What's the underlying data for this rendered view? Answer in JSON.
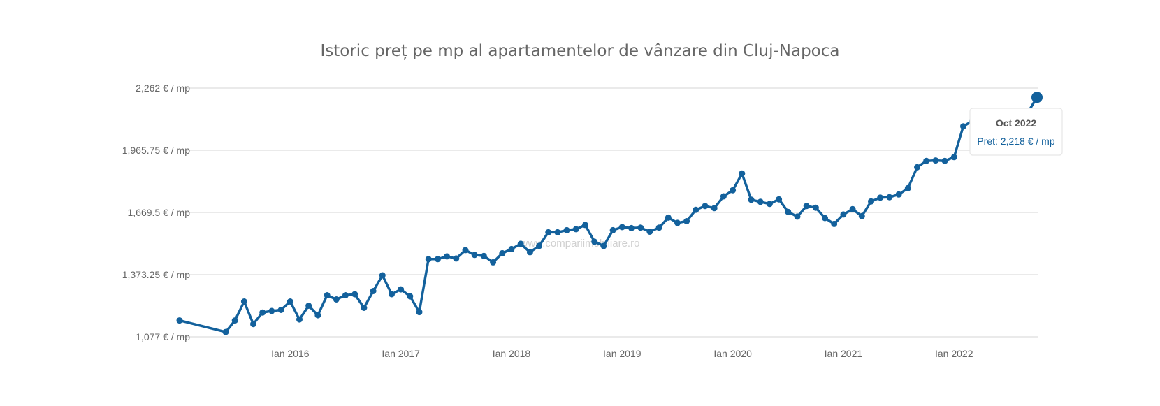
{
  "chart_data": {
    "type": "line",
    "title": "Istoric preț pe mp al apartamentelor de vânzare din Cluj-Napoca",
    "xlabel": "",
    "ylabel": "",
    "y_ticks": [
      "2,262 € / mp",
      "1,965.75 € / mp",
      "1,669.5 € / mp",
      "1,373.25 € / mp",
      "1,077 € / mp"
    ],
    "x_ticks": [
      "Ian 2016",
      "Ian 2017",
      "Ian 2018",
      "Ian 2019",
      "Ian 2020",
      "Ian 2021",
      "Ian 2022"
    ],
    "ylim": [
      1077,
      2262
    ],
    "grid": true,
    "legend": false,
    "color": "#13619c",
    "watermark": "www.compariimobiliare.ro",
    "tooltip": {
      "title": "Oct 2022",
      "text": "Pret: 2,218 € / mp"
    },
    "series": [
      {
        "points": [
          [
            "2015-01",
            1155
          ],
          [
            "2015-06",
            1100
          ],
          [
            "2015-07",
            1155
          ],
          [
            "2015-08",
            1245
          ],
          [
            "2015-09",
            1138
          ],
          [
            "2015-10",
            1193
          ],
          [
            "2015-11",
            1200
          ],
          [
            "2015-12",
            1205
          ],
          [
            "2016-01",
            1245
          ],
          [
            "2016-02",
            1160
          ],
          [
            "2016-03",
            1225
          ],
          [
            "2016-04",
            1180
          ],
          [
            "2016-05",
            1275
          ],
          [
            "2016-06",
            1255
          ],
          [
            "2016-07",
            1275
          ],
          [
            "2016-08",
            1280
          ],
          [
            "2016-09",
            1215
          ],
          [
            "2016-10",
            1295
          ],
          [
            "2016-11",
            1370
          ],
          [
            "2016-12",
            1280
          ],
          [
            "2017-01",
            1303
          ],
          [
            "2017-02",
            1270
          ],
          [
            "2017-03",
            1195
          ],
          [
            "2017-04",
            1447
          ],
          [
            "2017-05",
            1447
          ],
          [
            "2017-06",
            1460
          ],
          [
            "2017-07",
            1450
          ],
          [
            "2017-08",
            1490
          ],
          [
            "2017-09",
            1467
          ],
          [
            "2017-10",
            1462
          ],
          [
            "2017-11",
            1432
          ],
          [
            "2017-12",
            1475
          ],
          [
            "2018-01",
            1495
          ],
          [
            "2018-02",
            1520
          ],
          [
            "2018-03",
            1480
          ],
          [
            "2018-04",
            1510
          ],
          [
            "2018-05",
            1575
          ],
          [
            "2018-06",
            1575
          ],
          [
            "2018-07",
            1585
          ],
          [
            "2018-08",
            1590
          ],
          [
            "2018-09",
            1610
          ],
          [
            "2018-10",
            1530
          ],
          [
            "2018-11",
            1510
          ],
          [
            "2018-12",
            1585
          ],
          [
            "2019-01",
            1600
          ],
          [
            "2019-02",
            1595
          ],
          [
            "2019-03",
            1597
          ],
          [
            "2019-04",
            1578
          ],
          [
            "2019-05",
            1597
          ],
          [
            "2019-06",
            1645
          ],
          [
            "2019-07",
            1620
          ],
          [
            "2019-08",
            1628
          ],
          [
            "2019-09",
            1682
          ],
          [
            "2019-10",
            1700
          ],
          [
            "2019-11",
            1690
          ],
          [
            "2019-12",
            1746
          ],
          [
            "2020-01",
            1775
          ],
          [
            "2020-02",
            1855
          ],
          [
            "2020-03",
            1730
          ],
          [
            "2020-04",
            1720
          ],
          [
            "2020-05",
            1710
          ],
          [
            "2020-06",
            1732
          ],
          [
            "2020-07",
            1672
          ],
          [
            "2020-08",
            1650
          ],
          [
            "2020-09",
            1700
          ],
          [
            "2020-10",
            1692
          ],
          [
            "2020-11",
            1643
          ],
          [
            "2020-12",
            1615
          ],
          [
            "2021-01",
            1660
          ],
          [
            "2021-02",
            1685
          ],
          [
            "2021-03",
            1652
          ],
          [
            "2021-04",
            1722
          ],
          [
            "2021-05",
            1740
          ],
          [
            "2021-06",
            1742
          ],
          [
            "2021-07",
            1755
          ],
          [
            "2021-08",
            1785
          ],
          [
            "2021-09",
            1885
          ],
          [
            "2021-10",
            1915
          ],
          [
            "2021-11",
            1917
          ],
          [
            "2021-12",
            1915
          ],
          [
            "2022-01",
            1933
          ],
          [
            "2022-02",
            2080
          ],
          [
            "2022-03",
            2105
          ],
          [
            "2022-04",
            2090
          ],
          [
            "2022-05",
            2140
          ],
          [
            "2022-06",
            2140
          ],
          [
            "2022-07",
            2140
          ],
          [
            "2022-08",
            2140
          ],
          [
            "2022-09",
            2145
          ],
          [
            "2022-10",
            2218
          ]
        ]
      }
    ]
  }
}
